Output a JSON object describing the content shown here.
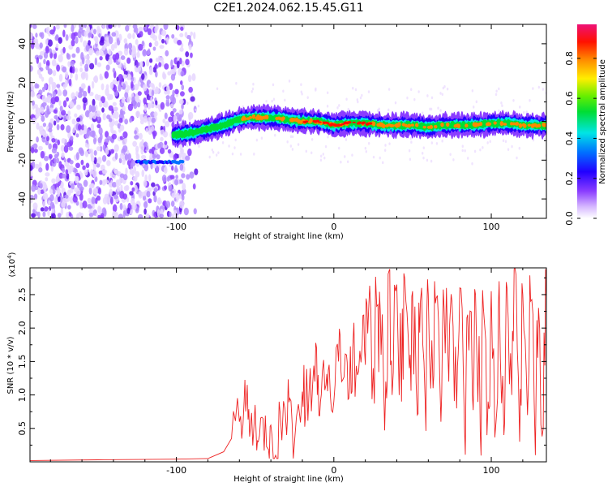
{
  "title": "C2E1.2024.062.15.45.G11",
  "colors": {
    "snr_line": "#ee2222",
    "spectrogram_low": "#8a3dff",
    "axis": "#000000"
  },
  "chart_data": [
    {
      "type": "heatmap",
      "name": "spectrogram",
      "xlabel": "Height of straight line (km)",
      "ylabel": "Frequency (Hz)",
      "xlim": [
        -193,
        135
      ],
      "ylim": [
        -50,
        50
      ],
      "x_ticks": [
        -100,
        0,
        100
      ],
      "x_tick_labels": [
        "-100",
        "0",
        "100"
      ],
      "y_ticks": [
        -40,
        -20,
        0,
        20,
        40
      ],
      "y_tick_labels": [
        "-40",
        "-20",
        "0",
        "20",
        "40"
      ],
      "ridge": {
        "x": [
          -100,
          -90,
          -80,
          -70,
          -60,
          -50,
          -40,
          -30,
          -20,
          -10,
          0,
          10,
          20,
          30,
          40,
          50,
          60,
          70,
          80,
          90,
          100,
          110,
          120,
          135
        ],
        "y": [
          -7,
          -6,
          -4,
          -2,
          1,
          2,
          2,
          1,
          0,
          0,
          -2,
          -1,
          -1,
          -2,
          -2,
          -2,
          -3,
          -2,
          -2,
          -2,
          -1,
          -1,
          -2,
          -2
        ]
      },
      "secondary_trace": {
        "x": [
          -125,
          -95
        ],
        "y": [
          -21,
          -21
        ]
      },
      "noise_region_x": [
        -193,
        -95
      ],
      "colorbar": {
        "label": "Normalized spectral amplitude",
        "ticks": [
          0.0,
          0.2,
          0.4,
          0.6,
          0.8
        ],
        "tick_labels": [
          "0.0",
          "0.2",
          "0.4",
          "0.6",
          "0.8"
        ],
        "range": [
          0,
          0.97
        ]
      }
    },
    {
      "type": "line",
      "name": "snr",
      "xlabel": "Height of straight line (km)",
      "ylabel": "SNR (10 * v/v)",
      "y_multiplier": "(x10^4)",
      "y_multiplier_base": "(x10",
      "y_multiplier_exp": "4",
      "y_multiplier_close": ")",
      "xlim": [
        -193,
        135
      ],
      "ylim": [
        0,
        2.9
      ],
      "x_ticks": [
        -100,
        0,
        100
      ],
      "x_tick_labels": [
        "-100",
        "0",
        "100"
      ],
      "y_ticks": [
        0.5,
        1.0,
        1.5,
        2.0,
        2.5
      ],
      "y_tick_labels": [
        "0.5",
        "1.0",
        "1.5",
        "2.0",
        "2.5"
      ],
      "series": [
        {
          "x": [
            -193,
            -150,
            -100,
            -80,
            -70,
            -65,
            -60,
            -57,
            -55,
            -53,
            -50,
            -48,
            -45,
            -42,
            -40,
            -37,
            -34,
            -30,
            -28,
            -25,
            -20,
            -18,
            -15,
            -12,
            -10,
            -8,
            -5,
            -3,
            0,
            3,
            5,
            8,
            10,
            12,
            15,
            18,
            20,
            22,
            25,
            28,
            30,
            33,
            35,
            37,
            40,
            43,
            45,
            48,
            50,
            53,
            55,
            58,
            60,
            63,
            65,
            68,
            70,
            73,
            75,
            78,
            80,
            83,
            85,
            88,
            90,
            93,
            95,
            98,
            100,
            103,
            105,
            108,
            110,
            113,
            115,
            118,
            120,
            123,
            125,
            128,
            130,
            133,
            135
          ],
          "y": [
            0.02,
            0.03,
            0.04,
            0.05,
            0.15,
            0.35,
            0.6,
            0.9,
            1.15,
            0.5,
            0.85,
            0.3,
            0.65,
            0.2,
            0.55,
            0.1,
            0.7,
            0.4,
            0.95,
            0.3,
            1.05,
            0.7,
            1.4,
            1.2,
            1.3,
            1.0,
            1.15,
            1.45,
            0.9,
            1.5,
            1.2,
            1.6,
            1.1,
            1.7,
            1.3,
            1.75,
            1.45,
            2.2,
            1.4,
            2.35,
            1.6,
            1.2,
            2.85,
            1.0,
            2.65,
            0.9,
            2.75,
            1.4,
            2.55,
            0.7,
            2.4,
            0.9,
            2.5,
            1.1,
            2.45,
            0.6,
            2.3,
            1.2,
            2.4,
            0.8,
            2.6,
            0.5,
            2.2,
            1.0,
            2.5,
            0.45,
            2.3,
            0.9,
            2.55,
            0.6,
            2.7,
            0.4,
            2.6,
            1.0,
            2.9,
            0.3,
            2.5,
            0.7,
            2.4,
            0.1,
            2.3,
            0.5,
            2.45
          ]
        }
      ]
    }
  ]
}
